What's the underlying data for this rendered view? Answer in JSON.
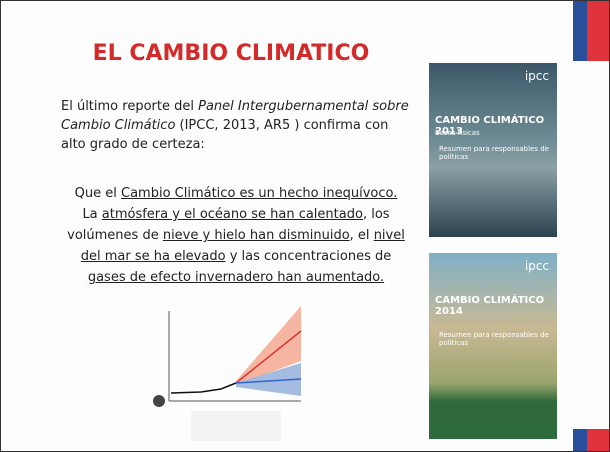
{
  "title": "EL CAMBIO CLIMATICO",
  "intro": [
    "El último reporte del ",
    "Panel Intergubernamental sobre Cambio Climático ",
    "(IPCC, 2013, AR5 ) confirma con alto grado de certeza:"
  ],
  "statement": [
    "Que el ",
    "Cambio Climático es un hecho inequívoco.",
    "La ",
    "atmósfera y el océano se han calentado",
    ", los volúmenes de ",
    "nieve y hielo han disminuido",
    ", el ",
    "nivel del mar se ha elevado",
    " y las concentraciones de ",
    "gases de efecto invernadero han aumentado."
  ],
  "covers": [
    {
      "logo": "ipcc",
      "title": "CAMBIO CLIMÁTICO 2013",
      "subtitle": "Bases físicas",
      "summary": "Resumen para responsables de políticas"
    },
    {
      "logo": "ipcc",
      "title": "CAMBIO CLIMÁTICO 2014",
      "summary": "Resumen para responsables de políticas"
    }
  ]
}
